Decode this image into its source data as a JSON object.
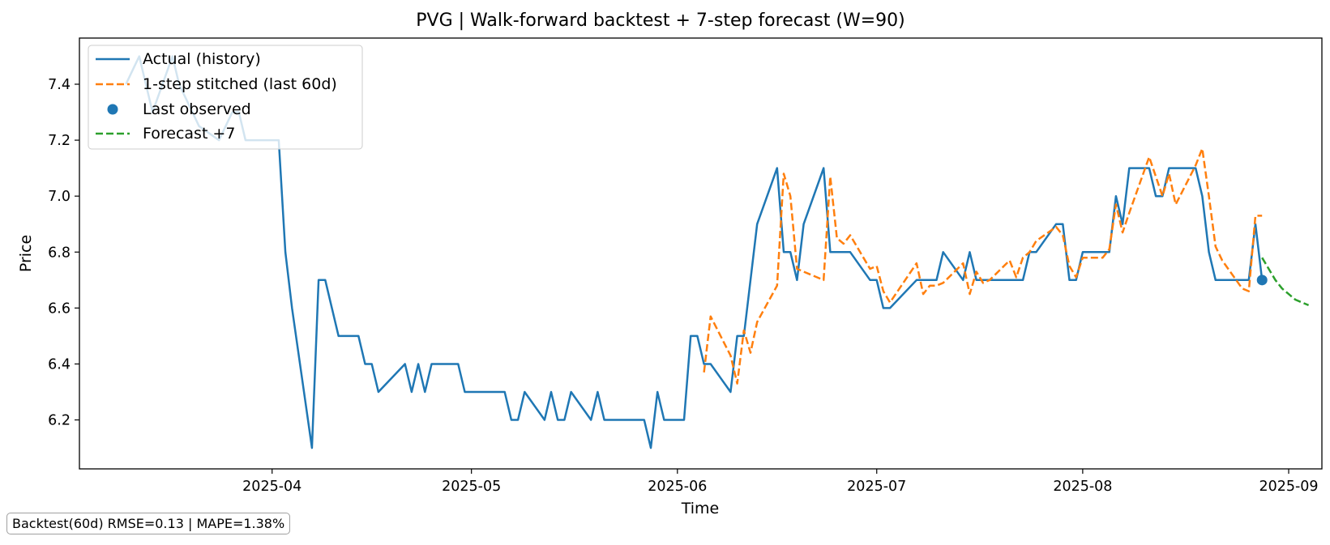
{
  "chart_data": {
    "type": "line",
    "title": "PVG | Walk-forward backtest + 7-step forecast (W=90)",
    "xlabel": "Time",
    "ylabel": "Price",
    "x_range": [
      "2025-03-03",
      "2025-09-06"
    ],
    "ylim": [
      6.025,
      7.565
    ],
    "x_ticks": [
      {
        "date": "2025-04-01",
        "label": "2025-04"
      },
      {
        "date": "2025-05-01",
        "label": "2025-05"
      },
      {
        "date": "2025-06-01",
        "label": "2025-06"
      },
      {
        "date": "2025-07-01",
        "label": "2025-07"
      },
      {
        "date": "2025-08-01",
        "label": "2025-08"
      },
      {
        "date": "2025-09-01",
        "label": "2025-09"
      }
    ],
    "y_ticks": [
      6.2,
      6.4,
      6.6,
      6.8,
      7.0,
      7.2,
      7.4
    ],
    "grid": false,
    "legend_position": "upper-left",
    "series": [
      {
        "name": "Actual (history)",
        "style": "solid",
        "color": "#1f77b4",
        "x": [
          "2025-03-10",
          "2025-03-11",
          "2025-03-12",
          "2025-03-13",
          "2025-03-14",
          "2025-03-17",
          "2025-03-18",
          "2025-03-19",
          "2025-03-20",
          "2025-03-21",
          "2025-03-24",
          "2025-03-25",
          "2025-03-26",
          "2025-03-27",
          "2025-03-28",
          "2025-03-31",
          "2025-04-01",
          "2025-04-02",
          "2025-04-03",
          "2025-04-04",
          "2025-04-07",
          "2025-04-08",
          "2025-04-09",
          "2025-04-10",
          "2025-04-11",
          "2025-04-14",
          "2025-04-15",
          "2025-04-16",
          "2025-04-17",
          "2025-04-21",
          "2025-04-22",
          "2025-04-23",
          "2025-04-24",
          "2025-04-25",
          "2025-04-28",
          "2025-04-29",
          "2025-04-30",
          "2025-05-01",
          "2025-05-02",
          "2025-05-05",
          "2025-05-06",
          "2025-05-07",
          "2025-05-08",
          "2025-05-09",
          "2025-05-12",
          "2025-05-13",
          "2025-05-14",
          "2025-05-15",
          "2025-05-16",
          "2025-05-19",
          "2025-05-20",
          "2025-05-21",
          "2025-05-22",
          "2025-05-23",
          "2025-05-27",
          "2025-05-28",
          "2025-05-29",
          "2025-05-30",
          "2025-06-02",
          "2025-06-03",
          "2025-06-04",
          "2025-06-05",
          "2025-06-06",
          "2025-06-09",
          "2025-06-10",
          "2025-06-11",
          "2025-06-12",
          "2025-06-13",
          "2025-06-16",
          "2025-06-17",
          "2025-06-18",
          "2025-06-19",
          "2025-06-20",
          "2025-06-23",
          "2025-06-24",
          "2025-06-25",
          "2025-06-26",
          "2025-06-27",
          "2025-06-30",
          "2025-07-01",
          "2025-07-02",
          "2025-07-03",
          "2025-07-07",
          "2025-07-08",
          "2025-07-09",
          "2025-07-10",
          "2025-07-11",
          "2025-07-14",
          "2025-07-15",
          "2025-07-16",
          "2025-07-17",
          "2025-07-18",
          "2025-07-21",
          "2025-07-22",
          "2025-07-23",
          "2025-07-24",
          "2025-07-25",
          "2025-07-28",
          "2025-07-29",
          "2025-07-30",
          "2025-07-31",
          "2025-08-01",
          "2025-08-04",
          "2025-08-05",
          "2025-08-06",
          "2025-08-07",
          "2025-08-08",
          "2025-08-11",
          "2025-08-12",
          "2025-08-13",
          "2025-08-14",
          "2025-08-15",
          "2025-08-18",
          "2025-08-19",
          "2025-08-20",
          "2025-08-21",
          "2025-08-22",
          "2025-08-25",
          "2025-08-26",
          "2025-08-27",
          "2025-08-28"
        ],
        "y": [
          7.4,
          7.45,
          7.5,
          7.4,
          7.3,
          7.5,
          7.4,
          7.35,
          7.3,
          7.25,
          7.2,
          7.25,
          7.3,
          7.3,
          7.2,
          7.2,
          7.2,
          7.2,
          6.8,
          6.6,
          6.1,
          6.7,
          6.7,
          6.6,
          6.5,
          6.5,
          6.4,
          6.4,
          6.3,
          6.4,
          6.3,
          6.4,
          6.3,
          6.4,
          6.4,
          6.4,
          6.3,
          6.3,
          6.3,
          6.3,
          6.3,
          6.2,
          6.2,
          6.3,
          6.2,
          6.3,
          6.2,
          6.2,
          6.3,
          6.2,
          6.3,
          6.2,
          6.2,
          6.2,
          6.2,
          6.1,
          6.3,
          6.2,
          6.2,
          6.5,
          6.5,
          6.4,
          6.4,
          6.3,
          6.5,
          6.5,
          6.7,
          6.9,
          7.1,
          6.8,
          6.8,
          6.7,
          6.9,
          7.1,
          6.8,
          6.8,
          6.8,
          6.8,
          6.7,
          6.7,
          6.6,
          6.6,
          6.7,
          6.7,
          6.7,
          6.7,
          6.8,
          6.7,
          6.8,
          6.7,
          6.7,
          6.7,
          6.7,
          6.7,
          6.7,
          6.8,
          6.8,
          6.9,
          6.9,
          6.7,
          6.7,
          6.8,
          6.8,
          6.8,
          7.0,
          6.9,
          7.1,
          7.1,
          7.0,
          7.0,
          7.1,
          7.1,
          7.1,
          7.0,
          6.8,
          6.7,
          6.7,
          6.7,
          6.7,
          6.9,
          6.7
        ]
      },
      {
        "name": "1-step stitched (last 60d)",
        "style": "dashed",
        "color": "#ff7f0e",
        "x": [
          "2025-06-05",
          "2025-06-06",
          "2025-06-09",
          "2025-06-10",
          "2025-06-11",
          "2025-06-12",
          "2025-06-13",
          "2025-06-16",
          "2025-06-17",
          "2025-06-18",
          "2025-06-19",
          "2025-06-20",
          "2025-06-23",
          "2025-06-24",
          "2025-06-25",
          "2025-06-26",
          "2025-06-27",
          "2025-06-30",
          "2025-07-01",
          "2025-07-02",
          "2025-07-03",
          "2025-07-07",
          "2025-07-08",
          "2025-07-09",
          "2025-07-10",
          "2025-07-11",
          "2025-07-14",
          "2025-07-15",
          "2025-07-16",
          "2025-07-17",
          "2025-07-18",
          "2025-07-21",
          "2025-07-22",
          "2025-07-23",
          "2025-07-24",
          "2025-07-25",
          "2025-07-28",
          "2025-07-29",
          "2025-07-30",
          "2025-07-31",
          "2025-08-01",
          "2025-08-04",
          "2025-08-05",
          "2025-08-06",
          "2025-08-07",
          "2025-08-08",
          "2025-08-11",
          "2025-08-12",
          "2025-08-13",
          "2025-08-14",
          "2025-08-15",
          "2025-08-18",
          "2025-08-19",
          "2025-08-20",
          "2025-08-21",
          "2025-08-22",
          "2025-08-25",
          "2025-08-26",
          "2025-08-27",
          "2025-08-28"
        ],
        "y": [
          6.37,
          6.57,
          6.43,
          6.33,
          6.52,
          6.44,
          6.55,
          6.68,
          7.08,
          7.0,
          6.74,
          6.73,
          6.7,
          7.07,
          6.85,
          6.83,
          6.86,
          6.74,
          6.75,
          6.66,
          6.62,
          6.76,
          6.65,
          6.68,
          6.68,
          6.69,
          6.76,
          6.65,
          6.73,
          6.69,
          6.7,
          6.77,
          6.71,
          6.78,
          6.8,
          6.84,
          6.89,
          6.86,
          6.75,
          6.71,
          6.78,
          6.78,
          6.81,
          6.97,
          6.87,
          6.94,
          7.14,
          7.07,
          7.0,
          7.08,
          6.97,
          7.11,
          7.17,
          7.0,
          6.82,
          6.77,
          6.67,
          6.66,
          6.93,
          6.93
        ]
      },
      {
        "name": "Forecast +7",
        "style": "dashed",
        "color": "#2ca02c",
        "x": [
          "2025-08-28",
          "2025-08-29",
          "2025-08-30",
          "2025-08-31",
          "2025-09-01",
          "2025-09-02",
          "2025-09-03",
          "2025-09-04"
        ],
        "y": [
          6.78,
          6.74,
          6.7,
          6.67,
          6.65,
          6.63,
          6.62,
          6.61
        ]
      }
    ],
    "points": [
      {
        "name": "Last observed",
        "date": "2025-08-28",
        "value": 6.7,
        "color": "#1f77b4"
      }
    ],
    "metrics_text": "Backtest(60d)  RMSE=0.13 | MAPE=1.38%"
  }
}
